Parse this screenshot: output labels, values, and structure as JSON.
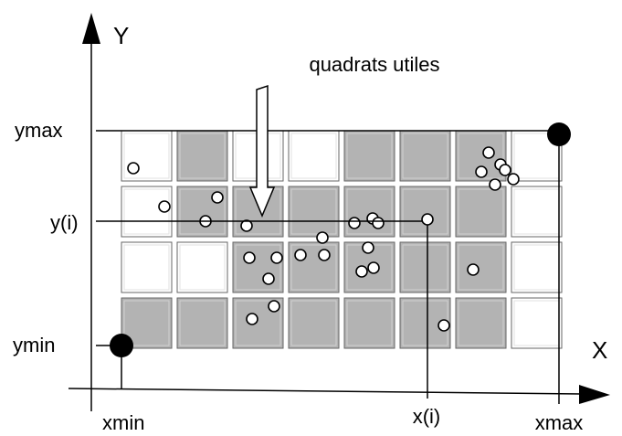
{
  "axes": {
    "y": "Y",
    "x": "X"
  },
  "annotation": "quadrats utiles",
  "labels": {
    "ymax": "ymax",
    "yi": "y(i)",
    "ymin": "ymin",
    "xmin": "xmin",
    "xi": "x(i)",
    "xmax": "xmax"
  }
}
